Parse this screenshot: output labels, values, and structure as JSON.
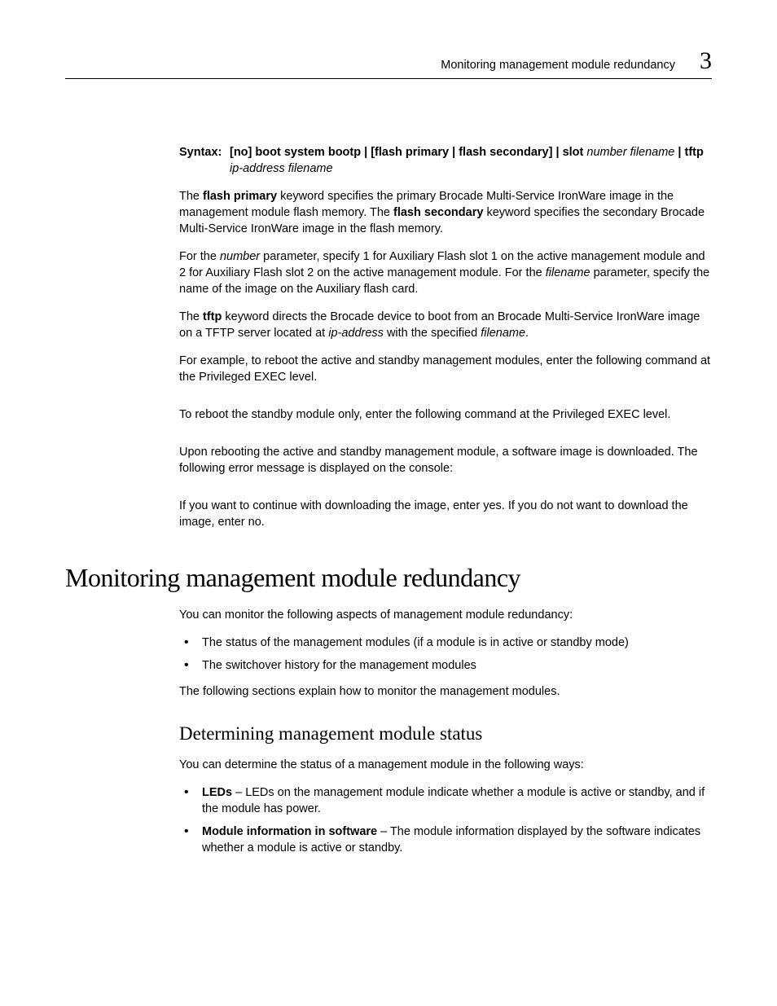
{
  "header": {
    "running_title": "Monitoring management module redundancy",
    "chapter_number": "3"
  },
  "syntax": {
    "label": "Syntax:",
    "line1_parts": {
      "p1": " [no] boot system bootp | [flash primary | flash secondary] | slot ",
      "p2_ital": "number filename",
      "p3": " | tftp"
    },
    "line2_ital": "ip-address filename"
  },
  "para1": {
    "a": "The ",
    "b_bold": "flash primary",
    "c": " keyword specifies the primary Brocade Multi-Service IronWare image in the management module flash memory. The ",
    "d_bold": "flash secondary",
    "e": " keyword specifies the secondary Brocade Multi-Service IronWare image in the flash memory."
  },
  "para2": {
    "a": "For the ",
    "b_ital": "number",
    "c": " parameter, specify 1 for Auxiliary Flash slot 1 on the active management module and 2 for Auxiliary Flash slot 2 on the active management module. For the ",
    "d_ital": "filename",
    "e": " parameter, specify the name of the image on the Auxiliary flash card."
  },
  "para3": {
    "a": "The ",
    "b_bold": "tftp",
    "c": " keyword directs the Brocade device to boot from an Brocade Multi-Service IronWare image on a TFTP server located at ",
    "d_ital": "ip-address",
    "e": " with the specified ",
    "f_ital": "filename",
    "g": "."
  },
  "para4": "For example, to reboot the active and standby management modules, enter the following command at the Privileged EXEC level.",
  "para5": "To reboot the standby module only, enter the following command at the Privileged EXEC level.",
  "para6": "Upon rebooting the active and standby management module, a software image is downloaded. The following error message is displayed on the console:",
  "para7": "If you want to continue with downloading the image, enter yes. If you do not want to download the image, enter no.",
  "h1": "Monitoring management module redundancy",
  "intro": "You can monitor the following aspects of management module redundancy:",
  "bullets1": [
    "The status of the management modules (if a module is in active or standby mode)",
    "The switchover history for the management modules"
  ],
  "intro2": "The following sections explain how to monitor the management modules.",
  "h2": "Determining management module status",
  "sub_intro": "You can determine the status of a management module in the following ways:",
  "bullets2": [
    {
      "lead": "LEDs",
      "rest": " – LEDs on the management module indicate whether a module is active or standby, and if the module has power."
    },
    {
      "lead": "Module information in software",
      "rest": " – The module information displayed by the software indicates whether a module is active or standby."
    }
  ]
}
